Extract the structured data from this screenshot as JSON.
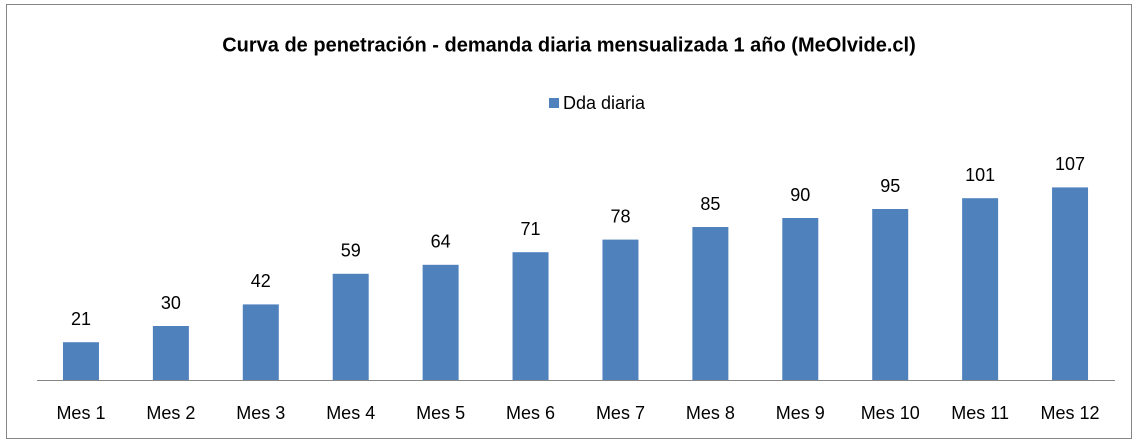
{
  "chart_data": {
    "type": "bar",
    "title": "Curva de penetración - demanda diaria mensualizada 1 año (MeOlvide.cl)",
    "categories": [
      "Mes 1",
      "Mes 2",
      "Mes 3",
      "Mes 4",
      "Mes 5",
      "Mes 6",
      "Mes 7",
      "Mes 8",
      "Mes 9",
      "Mes 10",
      "Mes 11",
      "Mes 12"
    ],
    "series": [
      {
        "name": "Dda diaria",
        "color": "#4f81bd",
        "values": [
          21,
          30,
          42,
          59,
          64,
          71,
          78,
          85,
          90,
          95,
          101,
          107
        ]
      }
    ],
    "ylim": [
      0,
      120
    ],
    "legend": "top"
  }
}
